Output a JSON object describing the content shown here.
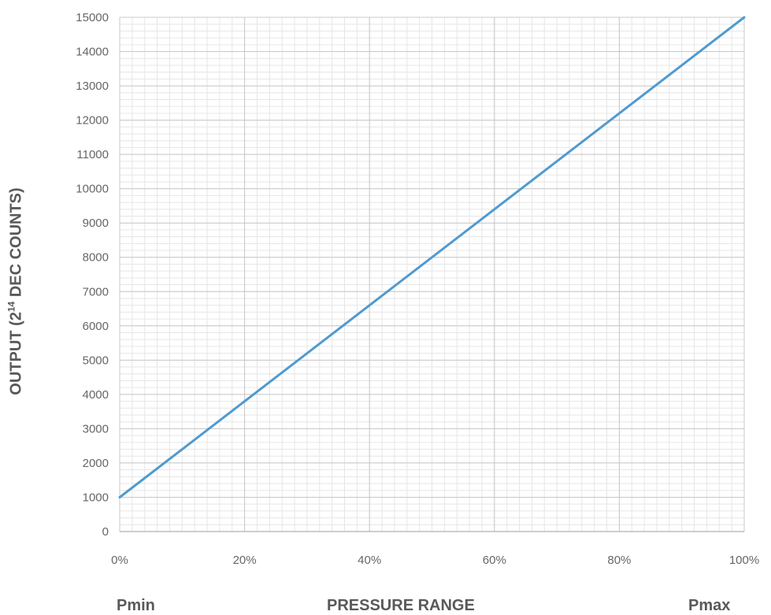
{
  "chart_data": {
    "type": "line",
    "title": "",
    "xlabel": "PRESSURE RANGE",
    "ylabel_prefix": "OUTPUT (2",
    "ylabel_exp": "14",
    "ylabel_suffix": " DEC COUNTS)",
    "x_tick_labels": [
      "0%",
      "20%",
      "40%",
      "60%",
      "80%",
      "100%"
    ],
    "x_ticks": [
      0,
      20,
      40,
      60,
      80,
      100
    ],
    "y_ticks": [
      0,
      1000,
      2000,
      3000,
      4000,
      5000,
      6000,
      7000,
      8000,
      9000,
      10000,
      11000,
      12000,
      13000,
      14000,
      15000
    ],
    "xlim": [
      0,
      100
    ],
    "ylim": [
      0,
      15000
    ],
    "grid": true,
    "series": [
      {
        "x": [
          0,
          100
        ],
        "values": [
          1000,
          15000
        ],
        "color": "#4f9ad0"
      }
    ],
    "bottom_labels": {
      "left": "Pmin",
      "center": "PRESSURE RANGE",
      "right": "Pmax"
    }
  }
}
